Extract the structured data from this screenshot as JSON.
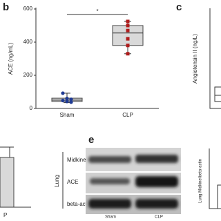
{
  "chart_data": [
    {
      "type": "box",
      "panel": "b",
      "ylabel": "ACE (ng/mL)",
      "categories": [
        "Sham",
        "CLP"
      ],
      "boxes": [
        {
          "whislo": 35,
          "q1": 42,
          "med": 50,
          "q3": 62,
          "whishi": 92,
          "points": [
            92,
            60,
            55,
            48,
            42,
            38
          ],
          "color": "#1f3a93",
          "marker": "circle"
        },
        {
          "whislo": 330,
          "q1": 380,
          "med": 455,
          "q3": 500,
          "whishi": 525,
          "points": [
            525,
            500,
            470,
            420,
            380,
            330
          ],
          "color": "#b01c1c",
          "marker": "square"
        }
      ],
      "box_fill": "#d9d9d9",
      "ylim": [
        0,
        600
      ],
      "yticks": [
        0,
        200,
        400,
        600
      ],
      "annotation": "*"
    }
  ],
  "panels": {
    "c": {
      "label": "c",
      "ylabel": "Angiotensin II (ng/L)"
    },
    "e": {
      "label": "e",
      "tissue": "Lung",
      "rows": [
        "Midkine",
        "ACE",
        "beta-actin"
      ],
      "columns": [
        "Sham",
        "CLP"
      ]
    },
    "left_partial": {
      "xlabel": "P"
    },
    "right_partial": {
      "ylabel": "Lung Midkine/beta-actin"
    }
  }
}
